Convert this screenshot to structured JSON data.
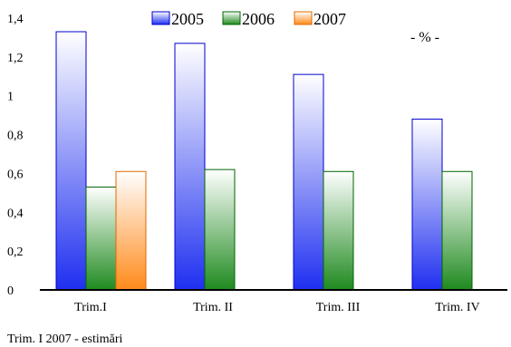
{
  "chart_data": {
    "type": "bar",
    "categories": [
      "Trim.I",
      "Trim. II",
      "Trim. III",
      "Trim. IV"
    ],
    "series": [
      {
        "name": "2005",
        "values": [
          1.33,
          1.27,
          1.11,
          0.88
        ]
      },
      {
        "name": "2006",
        "values": [
          0.53,
          0.62,
          0.61,
          0.61
        ]
      },
      {
        "name": "2007",
        "values": [
          0.61,
          null,
          null,
          null
        ]
      }
    ],
    "ylim": [
      0,
      1.4
    ],
    "yticks": [
      "0",
      "0,2",
      "0,4",
      "0,6",
      "0,8",
      "1",
      "1,2",
      "1,4"
    ],
    "unit_label": "- % -",
    "legend_position": "top-center",
    "grid": false,
    "colors": {
      "2005": {
        "top": "#ffffff",
        "bottom": "#1f2ff0",
        "edge": "#0000cc"
      },
      "2006": {
        "top": "#ffffff",
        "bottom": "#1f8a1f",
        "edge": "#006600"
      },
      "2007": {
        "top": "#ffffff",
        "bottom": "#ff8a1a",
        "edge": "#e06a00"
      }
    }
  },
  "footnote": "Trim. I 2007 - estimări"
}
